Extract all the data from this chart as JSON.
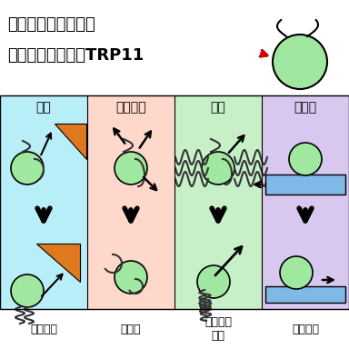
{
  "title_line1": "さまざまなタイプの",
  "title_line2": "機械刺激を感じるTRP11",
  "col_headers": [
    "衝突",
    "せん断力",
    "振動",
    "引張り"
  ],
  "col_labels": [
    "後退遊泳",
    "脱繊毛",
    "遊泳速度\n上昇",
    "滑走開始"
  ],
  "bg_colors": [
    "#b8eef8",
    "#ffd8cc",
    "#c8f0c8",
    "#d8c8f0"
  ],
  "green_cell": "#a0e8a0",
  "triangle_color": "#e07820",
  "red_arrow": "#cc0000",
  "blue_rect": "#80b8e8"
}
